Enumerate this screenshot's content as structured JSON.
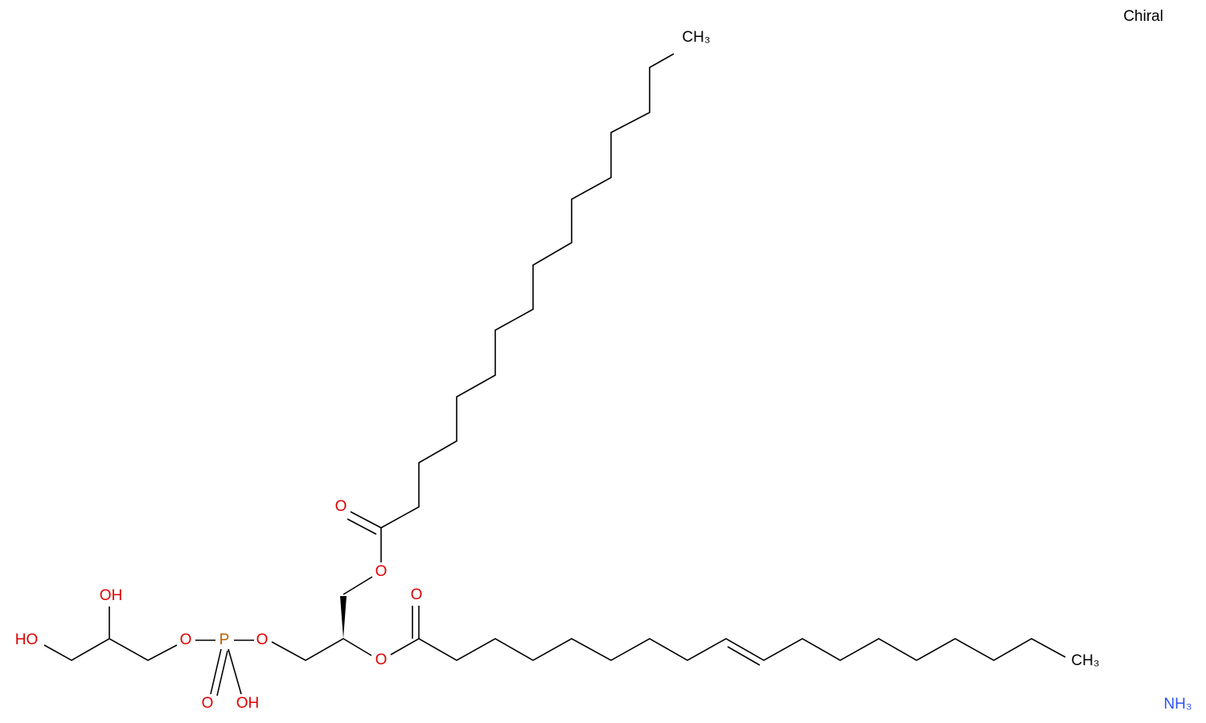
{
  "annotation": "Chiral",
  "atoms": [
    {
      "label": "CH₃"
    },
    {
      "label": "O"
    },
    {
      "label": "O"
    },
    {
      "label": "OH"
    },
    {
      "label": "HO"
    },
    {
      "label": "O"
    },
    {
      "label": "P"
    },
    {
      "label": "O"
    },
    {
      "label": "O"
    },
    {
      "label": "O"
    },
    {
      "label": "O"
    },
    {
      "label": "OH"
    },
    {
      "label": "CH₃"
    },
    {
      "label": "NH₃"
    }
  ]
}
